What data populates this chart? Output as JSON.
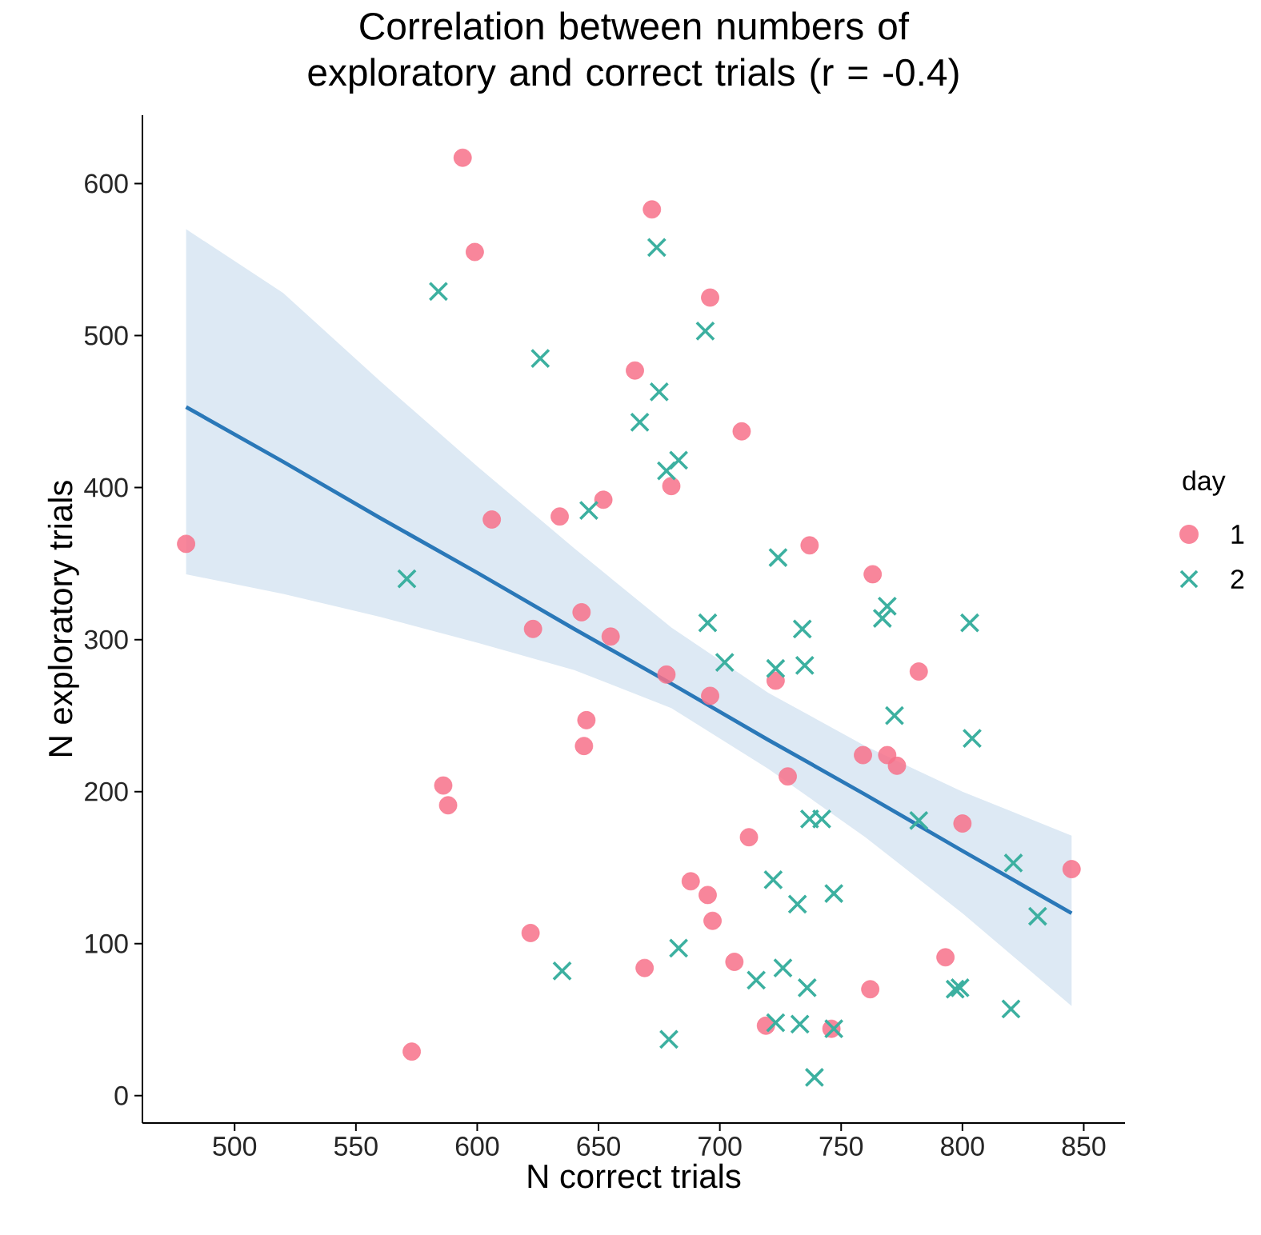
{
  "chart_data": {
    "type": "scatter",
    "title": "Correlation between numbers of exploratory and correct trials (r = -0.4)",
    "xlabel": "N correct trials",
    "ylabel": "N exploratory trials",
    "legend_title": "day",
    "legend": "right",
    "grid": false,
    "xlim": [
      462,
      867
    ],
    "ylim": [
      -18,
      645
    ],
    "xticks": [
      500,
      550,
      600,
      650,
      700,
      750,
      800,
      850
    ],
    "yticks": [
      0,
      100,
      200,
      300,
      400,
      500,
      600
    ],
    "series": [
      {
        "name": "1",
        "color": "#f77189",
        "marker": "circle",
        "x": [
          480,
          594,
          599,
          672,
          696,
          665,
          709,
          680,
          652,
          634,
          606,
          737,
          763,
          643,
          623,
          655,
          782,
          678,
          696,
          723,
          759,
          769,
          773,
          645,
          644,
          728,
          800,
          586,
          588,
          712,
          845,
          688,
          695,
          697,
          622,
          793,
          706,
          669,
          762,
          719,
          746,
          573
        ],
        "values": [
          363,
          617,
          555,
          583,
          525,
          477,
          437,
          401,
          392,
          381,
          379,
          362,
          343,
          318,
          307,
          302,
          279,
          277,
          263,
          273,
          224,
          224,
          217,
          247,
          230,
          210,
          179,
          204,
          191,
          170,
          149,
          141,
          132,
          115,
          107,
          91,
          88,
          84,
          70,
          46,
          44,
          29
        ]
      },
      {
        "name": "2",
        "color": "#3cb0a0",
        "marker": "cross",
        "x": [
          584,
          674,
          694,
          626,
          675,
          667,
          683,
          678,
          646,
          724,
          571,
          769,
          695,
          767,
          803,
          734,
          702,
          723,
          735,
          772,
          804,
          737,
          742,
          782,
          821,
          831,
          722,
          747,
          732,
          635,
          683,
          726,
          715,
          736,
          797,
          799,
          820,
          723,
          733,
          747,
          679,
          739
        ],
        "values": [
          529,
          558,
          503,
          485,
          463,
          443,
          418,
          411,
          385,
          354,
          340,
          322,
          311,
          314,
          311,
          307,
          285,
          281,
          283,
          250,
          235,
          182,
          182,
          181,
          153,
          118,
          142,
          133,
          126,
          82,
          97,
          84,
          76,
          71,
          70,
          71,
          57,
          48,
          47,
          44,
          37,
          12
        ]
      },
      {
        "type": "line",
        "color": "#2a78b8",
        "x": [
          480,
          520,
          560,
          600,
          640,
          680,
          720,
          760,
          800,
          845
        ],
        "values": [
          453,
          417,
          380,
          344,
          307,
          271,
          234,
          198,
          161,
          120
        ],
        "upper": [
          570,
          528,
          470,
          414,
          360,
          308,
          265,
          230,
          200,
          171
        ],
        "lower": [
          343,
          330,
          315,
          298,
          280,
          255,
          215,
          170,
          120,
          59
        ]
      }
    ]
  }
}
